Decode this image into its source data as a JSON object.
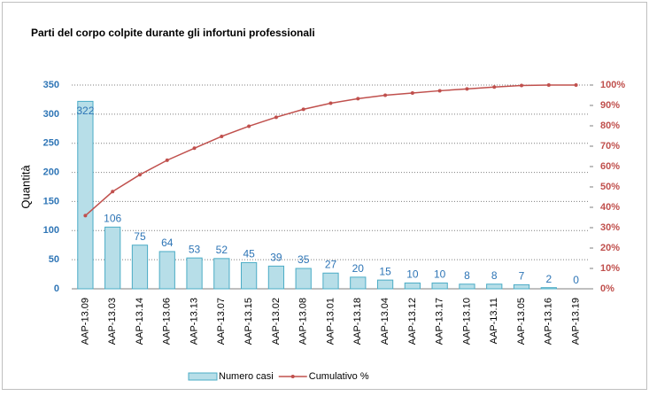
{
  "chart_data": {
    "type": "pareto",
    "title": "Parti del corpo colpite durante gli infortuni professionali",
    "ylabel": "Quantità",
    "categories": [
      "AAP-13.09",
      "AAP-13.03",
      "AAP-13.14",
      "AAP-13.06",
      "AAP-13.13",
      "AAP-13.07",
      "AAP-13.15",
      "AAP-13.02",
      "AAP-13.08",
      "AAP-13.01",
      "AAP-13.18",
      "AAP-13.04",
      "AAP-13.12",
      "AAP-13.17",
      "AAP-13.10",
      "AAP-13.11",
      "AAP-13.05",
      "AAP-13.16",
      "AAP-13.19"
    ],
    "series": [
      {
        "name": "Numero casi",
        "color": "#b7dee8",
        "values": [
          322,
          106,
          75,
          64,
          53,
          52,
          45,
          39,
          35,
          27,
          20,
          15,
          10,
          10,
          8,
          8,
          7,
          2,
          0
        ]
      },
      {
        "name": "Cumulativo %",
        "color": "#c0504d",
        "axis": "y2",
        "values": [
          35.9,
          47.7,
          56.0,
          63.1,
          69.0,
          74.8,
          79.8,
          84.2,
          88.1,
          91.1,
          93.3,
          95.0,
          96.1,
          97.2,
          98.1,
          99.0,
          99.8,
          100,
          100
        ]
      }
    ],
    "ylim": [
      0,
      350
    ],
    "yticks": [
      0,
      50,
      100,
      150,
      200,
      250,
      300,
      350
    ],
    "y2lim": [
      0,
      100
    ],
    "y2ticks": [
      {
        "value": 0,
        "label": "0%"
      },
      {
        "value": 10,
        "label": "10%"
      },
      {
        "value": 20,
        "label": "20%"
      },
      {
        "value": 30,
        "label": "30%"
      },
      {
        "value": 40,
        "label": "40%"
      },
      {
        "value": 50,
        "label": "50%"
      },
      {
        "value": 60,
        "label": "60%"
      },
      {
        "value": 70,
        "label": "70%"
      },
      {
        "value": 80,
        "label": "80%"
      },
      {
        "value": 90,
        "label": "90%"
      },
      {
        "value": 100,
        "label": "100%"
      }
    ],
    "grid": true,
    "legend": "bottom"
  }
}
